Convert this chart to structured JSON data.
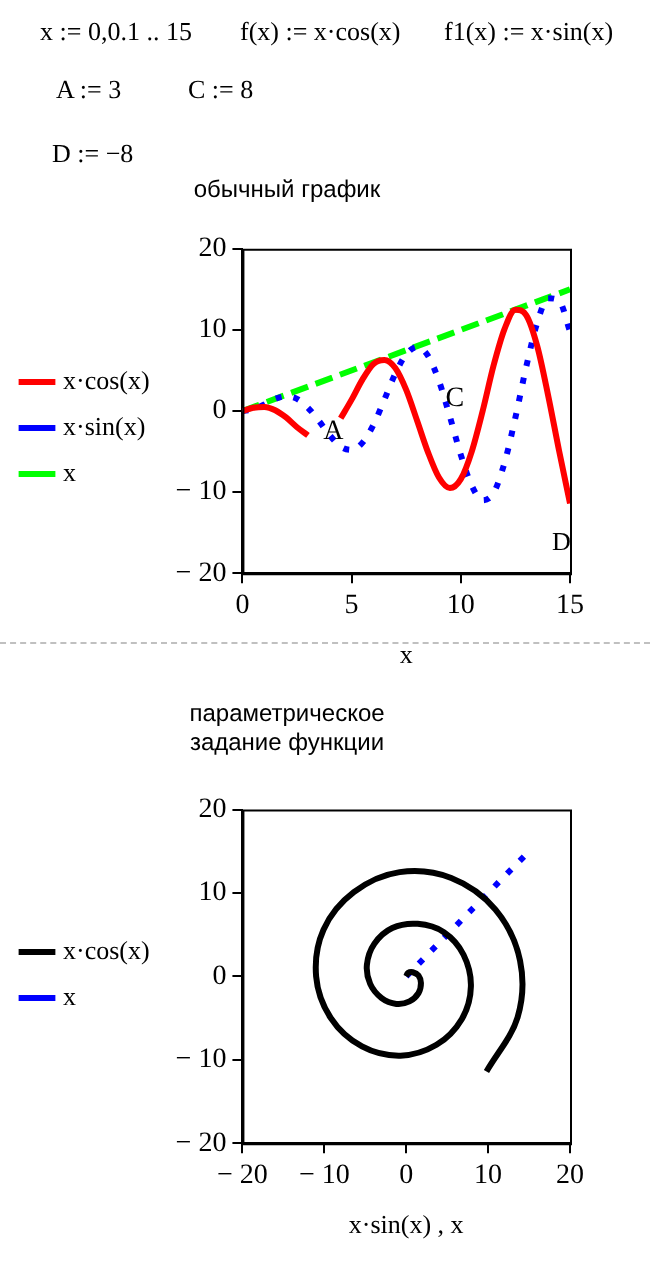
{
  "chart_data": [
    {
      "type": "line",
      "title": "обычный график",
      "xlabel": "x",
      "xlim": [
        0,
        15
      ],
      "xticks": [
        0,
        5,
        10,
        15
      ],
      "ylim": [
        -20,
        20
      ],
      "yticks": [
        -20,
        -10,
        0,
        10,
        20
      ],
      "grid": false,
      "legend": "left",
      "x": [
        0,
        0.5,
        1,
        1.5,
        2,
        2.5,
        3,
        3.5,
        4,
        4.5,
        5,
        5.5,
        6,
        6.5,
        7,
        7.5,
        8,
        8.5,
        9,
        9.5,
        10,
        10.5,
        11,
        11.5,
        12,
        12.5,
        13,
        13.5,
        14,
        14.5,
        15
      ],
      "series": [
        {
          "name": "x·cos(x)",
          "color": "#ff0000",
          "line_style": "solid",
          "values": [
            0,
            0.4,
            0.5,
            0.1,
            -0.8,
            -2.0,
            -3.0,
            null,
            null,
            -0.9,
            1.4,
            3.9,
            5.8,
            6.3,
            5.3,
            2.6,
            -1.2,
            -5.1,
            -8.2,
            -9.5,
            -8.4,
            -5.0,
            0.0,
            5.6,
            10.1,
            12.5,
            11.8,
            8.0,
            1.9,
            -4.9,
            -11.4
          ]
        },
        {
          "name": "x·sin(x)",
          "color": "#0000ff",
          "line_style": "dotted",
          "values": [
            0,
            0.2,
            0.8,
            1.5,
            1.8,
            1.5,
            0.4,
            -1.2,
            -3.0,
            -4.4,
            -4.8,
            -3.9,
            -1.7,
            1.4,
            4.6,
            7.0,
            7.9,
            6.8,
            3.7,
            -0.7,
            -5.4,
            -9.2,
            -11.0,
            -10.1,
            -6.4,
            -0.8,
            5.5,
            10.9,
            13.9,
            13.6,
            9.8
          ]
        },
        {
          "name": "x",
          "color": "#00ff00",
          "line_style": "dashed",
          "x": [
            0,
            15
          ],
          "values": [
            0,
            15
          ]
        }
      ],
      "annotations": [
        "x := 0,0.1 .. 15",
        "f(x) := x·cos(x)",
        "f1(x) := x·sin(x)",
        "A := 3",
        "C := 8",
        "D := −8",
        {
          "text": "A",
          "x": 3.7,
          "y": -2.5
        },
        {
          "text": "C",
          "x": 9.3,
          "y": 1.5
        },
        "D"
      ]
    },
    {
      "type": "line",
      "title": "параметрическое\nзадание функции",
      "xlabel": "x·sin(x) , x",
      "xlim": [
        -20,
        20
      ],
      "xticks": [
        -20,
        -10,
        0,
        10,
        20
      ],
      "ylim": [
        -20,
        20
      ],
      "yticks": [
        -20,
        -10,
        0,
        10,
        20
      ],
      "grid": false,
      "legend": "left",
      "series": [
        {
          "name": "x·cos(x)",
          "color": "#000000",
          "line_style": "solid",
          "x": [
            0,
            0.2,
            0.8,
            1.5,
            1.8,
            1.5,
            0.4,
            -1.2,
            -3.0,
            -4.4,
            -4.8,
            -3.9,
            -1.7,
            1.4,
            4.6,
            7.0,
            7.9,
            6.8,
            3.7,
            -0.7,
            -5.4,
            -9.2,
            -11.0,
            -10.1,
            -6.4,
            -0.8,
            5.5,
            10.9,
            13.9,
            13.6,
            9.8
          ],
          "values": [
            0,
            0.4,
            0.5,
            0.1,
            -0.8,
            -2.0,
            -3.0,
            -3.3,
            -2.6,
            -0.9,
            1.4,
            3.9,
            5.8,
            6.3,
            5.3,
            2.6,
            -1.2,
            -5.1,
            -8.2,
            -9.5,
            -8.4,
            -5.0,
            0.0,
            5.6,
            10.1,
            12.5,
            11.8,
            8.0,
            1.9,
            -4.9,
            -11.4
          ]
        },
        {
          "name": "x",
          "color": "#0000ff",
          "line_style": "dotted",
          "x": [
            0,
            15
          ],
          "values": [
            0,
            15
          ]
        }
      ]
    }
  ]
}
